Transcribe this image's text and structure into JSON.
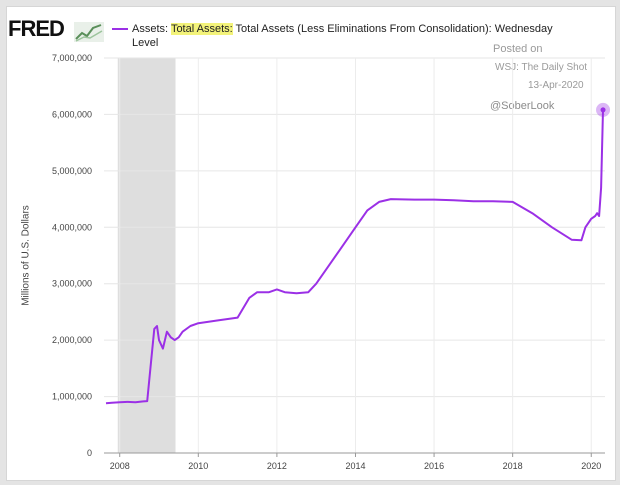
{
  "header": {
    "logo_text": "FRED",
    "legend_prefix": "Assets: ",
    "legend_highlight": "Total Assets:",
    "legend_rest": " Total Assets (Less Eliminations From Consolidation): Wednesday",
    "legend_level": "Level"
  },
  "watermark": {
    "posted_on": "Posted on",
    "source": "WSJ: The Daily Shot",
    "date": "13-Apr-2020",
    "handle": "@SoberLook"
  },
  "colors": {
    "series": "#9b30e6",
    "recession": "#dedede",
    "highlight": "#f3f37a"
  },
  "chart_data": {
    "type": "line",
    "title": "",
    "xlabel": "",
    "ylabel": "Millions of U.S. Dollars",
    "xlim": [
      2007.6,
      2020.35
    ],
    "ylim": [
      0,
      7000000
    ],
    "grid": true,
    "legend_placement": "top",
    "x_ticks": [
      2008,
      2010,
      2012,
      2014,
      2016,
      2018,
      2020
    ],
    "x_tick_labels": [
      "2008",
      "2010",
      "2012",
      "2014",
      "2016",
      "2018",
      "2020"
    ],
    "y_ticks": [
      0,
      1000000,
      2000000,
      3000000,
      4000000,
      5000000,
      6000000,
      7000000
    ],
    "y_tick_labels": [
      "0",
      "1,000,000",
      "2,000,000",
      "3,000,000",
      "4,000,000",
      "5,000,000",
      "6,000,000",
      "7,000,000"
    ],
    "recession_shading": [
      [
        2007.95,
        2009.42
      ]
    ],
    "series": [
      {
        "name": "Assets: Total Assets: Total Assets (Less Eliminations From Consolidation): Wednesday Level",
        "x": [
          2007.65,
          2007.8,
          2008.0,
          2008.2,
          2008.4,
          2008.6,
          2008.7,
          2008.78,
          2008.88,
          2008.95,
          2009.0,
          2009.1,
          2009.2,
          2009.3,
          2009.4,
          2009.5,
          2009.6,
          2009.8,
          2010.0,
          2010.5,
          2011.0,
          2011.3,
          2011.5,
          2011.8,
          2012.0,
          2012.2,
          2012.5,
          2012.8,
          2013.0,
          2013.3,
          2013.6,
          2014.0,
          2014.3,
          2014.6,
          2014.9,
          2015.5,
          2016.0,
          2016.5,
          2017.0,
          2017.5,
          2018.0,
          2018.5,
          2019.0,
          2019.5,
          2019.75,
          2019.85,
          2020.0,
          2020.1,
          2020.15,
          2020.2,
          2020.25,
          2020.3
        ],
        "y": [
          880000,
          890000,
          900000,
          905000,
          900000,
          915000,
          920000,
          1500000,
          2200000,
          2250000,
          2000000,
          1850000,
          2150000,
          2050000,
          2000000,
          2050000,
          2150000,
          2250000,
          2300000,
          2350000,
          2400000,
          2750000,
          2850000,
          2850000,
          2900000,
          2850000,
          2830000,
          2850000,
          3000000,
          3300000,
          3600000,
          4000000,
          4300000,
          4450000,
          4500000,
          4490000,
          4490000,
          4480000,
          4460000,
          4460000,
          4450000,
          4250000,
          4000000,
          3780000,
          3770000,
          4000000,
          4150000,
          4200000,
          4250000,
          4200000,
          4700000,
          6080000
        ]
      }
    ],
    "annotations": [
      "Posted on",
      "WSJ: The Daily Shot",
      "13-Apr-2020",
      "@SoberLook"
    ]
  }
}
